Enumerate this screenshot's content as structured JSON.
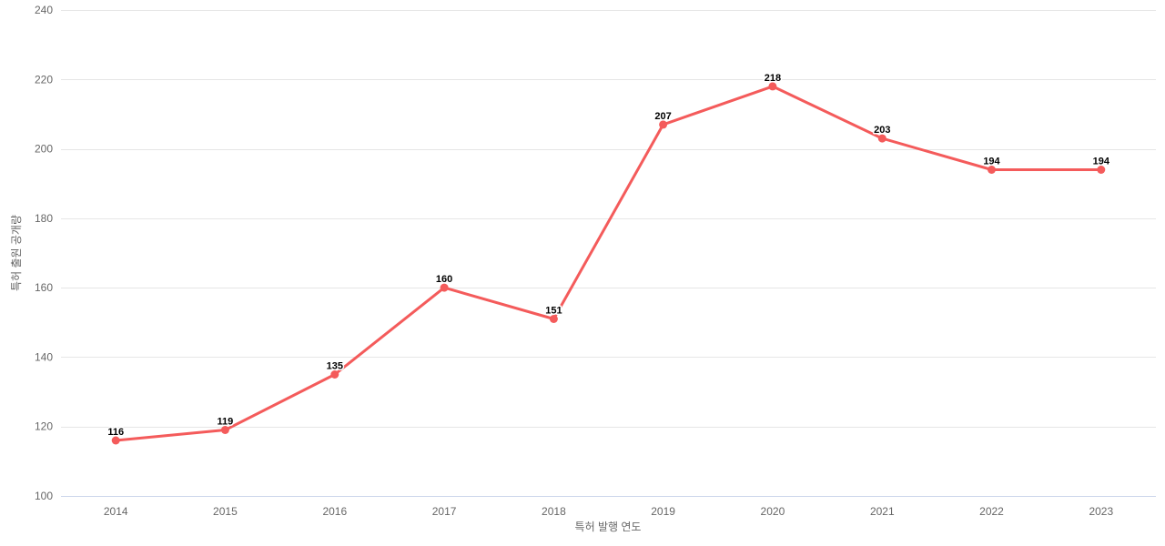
{
  "chart_data": {
    "type": "line",
    "categories": [
      "2014",
      "2015",
      "2016",
      "2017",
      "2018",
      "2019",
      "2020",
      "2021",
      "2022",
      "2023"
    ],
    "values": [
      116,
      119,
      135,
      160,
      151,
      207,
      218,
      203,
      194,
      194
    ],
    "xlabel": "특허 발행 연도",
    "ylabel": "특허 출원 공개량",
    "ylim": [
      100,
      240
    ],
    "yticks": [
      100,
      120,
      140,
      160,
      180,
      200,
      220,
      240
    ],
    "grid": "horizontal",
    "legend": "none",
    "data_labels_visible": true,
    "colors": {
      "line": "#f45b5b",
      "marker": "#f45b5b",
      "gridline": "#e6e6e6",
      "axis_line": "#ccd6eb",
      "tick_label": "#666666",
      "axis_title": "#666666",
      "data_label": "#000000",
      "background": "#ffffff"
    }
  }
}
